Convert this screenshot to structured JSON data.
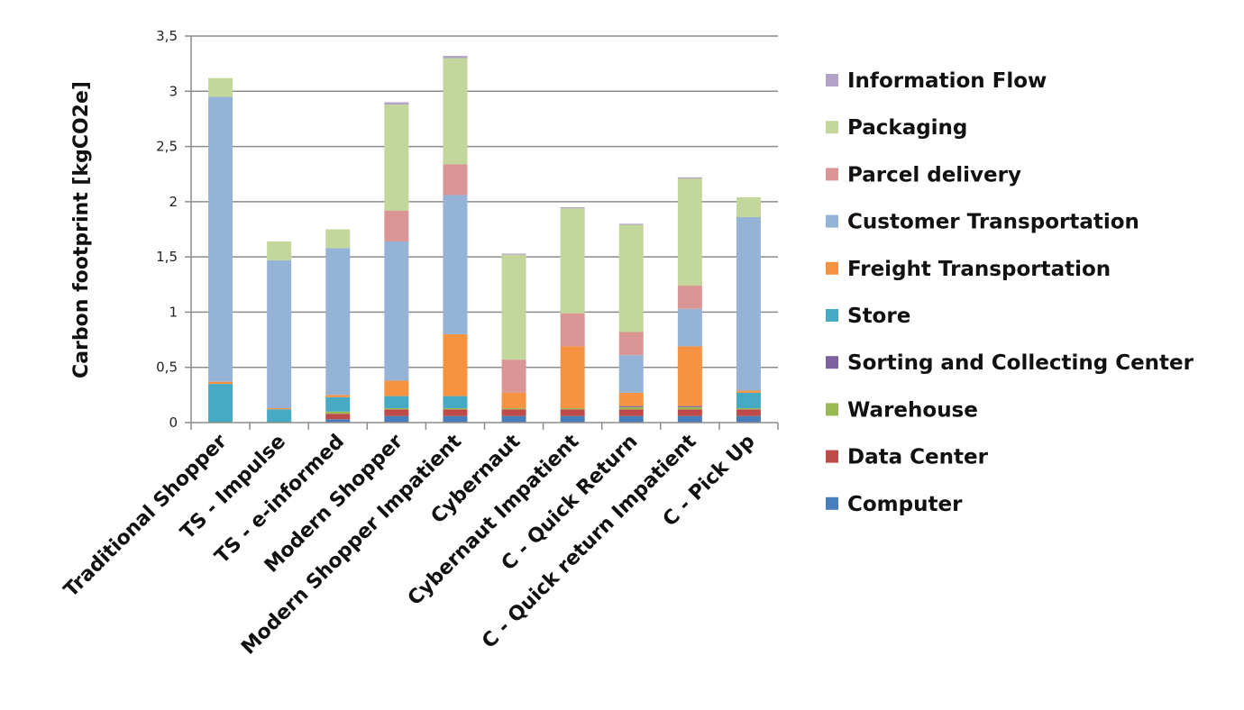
{
  "chart_data": {
    "type": "bar",
    "stacked": true,
    "title": "",
    "xlabel": "",
    "ylabel": "Carbon footprint [kgCO2e]",
    "ylim": [
      0,
      3.5
    ],
    "y_ticks": [
      0,
      0.5,
      1,
      1.5,
      2,
      2.5,
      3,
      3.5
    ],
    "y_tick_labels": [
      "0",
      "0,5",
      "1",
      "1,5",
      "2",
      "2,5",
      "3",
      "3,5"
    ],
    "grid": "horizontal",
    "legend_position": "right",
    "categories": [
      "Traditional Shopper",
      "TS - Impulse",
      "TS - e-informed",
      "Modern Shopper",
      "Modern Shopper Impatient",
      "Cybernaut",
      "Cybernaut Impatient",
      "C - Quick Return",
      "C - Quick return Impatient",
      "C - Pick Up"
    ],
    "series": [
      {
        "name": "Computer",
        "color": "#4a7ebb",
        "values": [
          0,
          0,
          0.03,
          0.06,
          0.06,
          0.06,
          0.06,
          0.06,
          0.06,
          0.06
        ]
      },
      {
        "name": "Data Center",
        "color": "#be4b48",
        "values": [
          0,
          0,
          0.05,
          0.06,
          0.06,
          0.06,
          0.06,
          0.06,
          0.06,
          0.06
        ]
      },
      {
        "name": "Warehouse",
        "color": "#98b954",
        "values": [
          0,
          0,
          0.02,
          0.01,
          0.01,
          0.01,
          0.01,
          0.02,
          0.02,
          0.01
        ]
      },
      {
        "name": "Sorting and Collecting Center",
        "color": "#7d60a0",
        "values": [
          0,
          0,
          0,
          0,
          0,
          0,
          0,
          0.01,
          0.01,
          0
        ]
      },
      {
        "name": "Store",
        "color": "#46aac5",
        "values": [
          0.35,
          0.12,
          0.13,
          0.11,
          0.11,
          0,
          0,
          0,
          0,
          0.14
        ]
      },
      {
        "name": "Freight Transportation",
        "color": "#f69240",
        "values": [
          0.02,
          0.01,
          0.02,
          0.14,
          0.56,
          0.14,
          0.56,
          0.12,
          0.54,
          0.02
        ]
      },
      {
        "name": "Customer Transportation",
        "color": "#95b3d7",
        "values": [
          2.58,
          1.34,
          1.33,
          1.26,
          1.26,
          0,
          0,
          0.34,
          0.34,
          1.57
        ]
      },
      {
        "name": "Parcel delivery",
        "color": "#d99694",
        "values": [
          0,
          0,
          0,
          0.28,
          0.28,
          0.3,
          0.3,
          0.21,
          0.21,
          0
        ]
      },
      {
        "name": "Packaging",
        "color": "#c3d69b",
        "values": [
          0.17,
          0.17,
          0.17,
          0.96,
          0.96,
          0.95,
          0.95,
          0.97,
          0.97,
          0.18
        ]
      },
      {
        "name": "Information Flow",
        "color": "#b3a2c7",
        "values": [
          0,
          0,
          0,
          0.02,
          0.02,
          0.01,
          0.01,
          0.01,
          0.01,
          0
        ]
      }
    ]
  }
}
